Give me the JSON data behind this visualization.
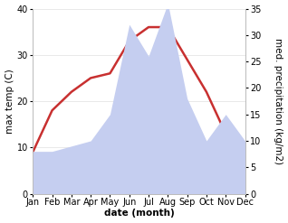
{
  "months": [
    "Jan",
    "Feb",
    "Mar",
    "Apr",
    "May",
    "Jun",
    "Jul",
    "Aug",
    "Sep",
    "Oct",
    "Nov",
    "Dec"
  ],
  "temperature": [
    9,
    18,
    22,
    25,
    26,
    33,
    36,
    36,
    29,
    22,
    13,
    11
  ],
  "precipitation": [
    8,
    8,
    9,
    10,
    15,
    32,
    26,
    36,
    18,
    10,
    15,
    10
  ],
  "temp_color": "#c83030",
  "precip_color": "#c5cef0",
  "temp_ylim": [
    0,
    40
  ],
  "precip_ylim": [
    0,
    35
  ],
  "temp_yticks": [
    0,
    10,
    20,
    30,
    40
  ],
  "precip_yticks": [
    0,
    5,
    10,
    15,
    20,
    25,
    30,
    35
  ],
  "ylabel_left": "max temp (C)",
  "ylabel_right": "med. precipitation (kg/m2)",
  "xlabel": "date (month)",
  "bg_color": "#ffffff",
  "line_width": 1.8,
  "font_size_axis": 7.5,
  "font_size_ticks": 7
}
